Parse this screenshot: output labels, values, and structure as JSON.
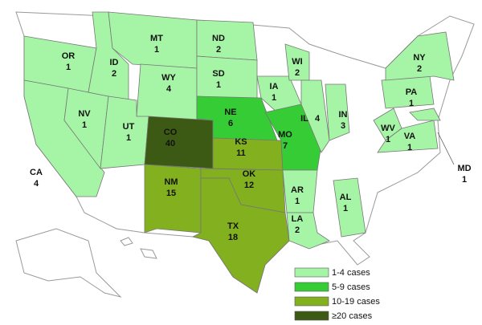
{
  "states": [
    {
      "abbr": "OR",
      "cases": 1,
      "color": "#a6f5a6"
    },
    {
      "abbr": "CA",
      "cases": 4,
      "color": "#a6f5a6"
    },
    {
      "abbr": "NV",
      "cases": 1,
      "color": "#a6f5a6"
    },
    {
      "abbr": "ID",
      "cases": 2,
      "color": "#a6f5a6"
    },
    {
      "abbr": "MT",
      "cases": 1,
      "color": "#a6f5a6"
    },
    {
      "abbr": "WY",
      "cases": 4,
      "color": "#a6f5a6"
    },
    {
      "abbr": "UT",
      "cases": 1,
      "color": "#a6f5a6"
    },
    {
      "abbr": "CO",
      "cases": 40,
      "color": "#3d5a14"
    },
    {
      "abbr": "NM",
      "cases": 15,
      "color": "#82b01f"
    },
    {
      "abbr": "ND",
      "cases": 2,
      "color": "#a6f5a6"
    },
    {
      "abbr": "SD",
      "cases": 1,
      "color": "#a6f5a6"
    },
    {
      "abbr": "NE",
      "cases": 6,
      "color": "#35cc35"
    },
    {
      "abbr": "KS",
      "cases": 11,
      "color": "#82b01f"
    },
    {
      "abbr": "OK",
      "cases": 12,
      "color": "#82b01f"
    },
    {
      "abbr": "TX",
      "cases": 18,
      "color": "#82b01f"
    },
    {
      "abbr": "IA",
      "cases": 1,
      "color": "#a6f5a6"
    },
    {
      "abbr": "MO",
      "cases": 7,
      "color": "#35cc35"
    },
    {
      "abbr": "WI",
      "cases": 2,
      "color": "#a6f5a6"
    },
    {
      "abbr": "IL",
      "cases": 4,
      "color": "#a6f5a6"
    },
    {
      "abbr": "IN",
      "cases": 3,
      "color": "#a6f5a6"
    },
    {
      "abbr": "AR",
      "cases": 1,
      "color": "#a6f5a6"
    },
    {
      "abbr": "LA",
      "cases": 2,
      "color": "#a6f5a6"
    },
    {
      "abbr": "AL",
      "cases": 1,
      "color": "#a6f5a6"
    },
    {
      "abbr": "WV",
      "cases": 1,
      "color": "#a6f5a6"
    },
    {
      "abbr": "VA",
      "cases": 1,
      "color": "#a6f5a6"
    },
    {
      "abbr": "PA",
      "cases": 1,
      "color": "#a6f5a6"
    },
    {
      "abbr": "NY",
      "cases": 2,
      "color": "#a6f5a6"
    },
    {
      "abbr": "MD",
      "cases": 1,
      "color": "#a6f5a6"
    }
  ],
  "legend": [
    {
      "label": "1-4 cases",
      "color": "#a6f5a6"
    },
    {
      "label": "5-9 cases",
      "color": "#35cc35"
    },
    {
      "label": "10-19 cases",
      "color": "#82b01f"
    },
    {
      "label": "≥20 cases",
      "color": "#3d5a14"
    }
  ]
}
